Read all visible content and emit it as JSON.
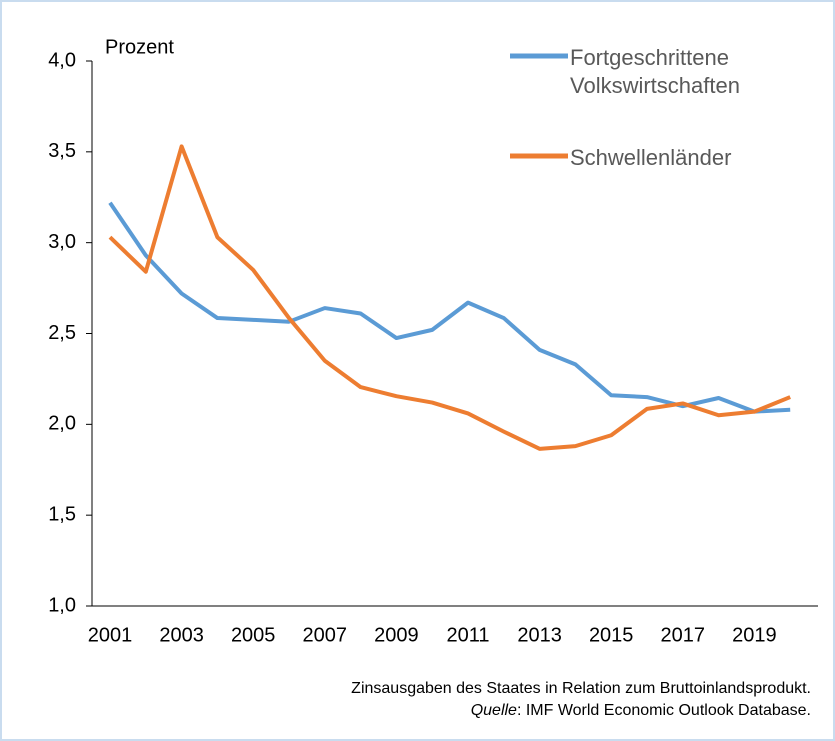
{
  "chart_data": {
    "type": "line",
    "y_label": "Prozent",
    "categories": [
      "2001",
      null,
      "2003",
      null,
      "2005",
      null,
      "2007",
      null,
      "2009",
      null,
      "2011",
      null,
      "2013",
      null,
      "2015",
      null,
      "2017",
      null,
      "2019",
      null
    ],
    "series": [
      {
        "name": "Fortgeschrittene Volkswirtschaften",
        "color": "#5b9bd5",
        "values": [
          3.22,
          2.93,
          2.72,
          2.585,
          2.575,
          2.565,
          2.64,
          2.61,
          2.475,
          2.52,
          2.67,
          2.585,
          2.41,
          2.33,
          2.16,
          2.15,
          2.1,
          2.145,
          2.07,
          2.08
        ]
      },
      {
        "name": "Schwellenländer",
        "color": "#ed7d31",
        "values": [
          3.03,
          2.84,
          3.53,
          3.03,
          2.85,
          2.585,
          2.35,
          2.205,
          2.155,
          2.12,
          2.06,
          1.96,
          1.865,
          1.88,
          1.94,
          2.085,
          2.115,
          2.05,
          2.07,
          2.15
        ]
      }
    ],
    "ylim": [
      1,
      4
    ],
    "yticks": [
      {
        "value": 1,
        "label": "1,0"
      },
      {
        "value": 1.5,
        "label": "1,5"
      },
      {
        "value": 2,
        "label": "2,0"
      },
      {
        "value": 2.5,
        "label": "2,5"
      },
      {
        "value": 3,
        "label": "3,0"
      },
      {
        "value": 3.5,
        "label": "3,5"
      },
      {
        "value": 4,
        "label": "4,0"
      }
    ],
    "grid": false,
    "legend": "top-right",
    "note": "Zinsausgaben des Staates in Relation zum Bruttoinlandsprodukt.",
    "source_label": "Quelle",
    "source": ": IMF World Economic Outlook Database."
  }
}
